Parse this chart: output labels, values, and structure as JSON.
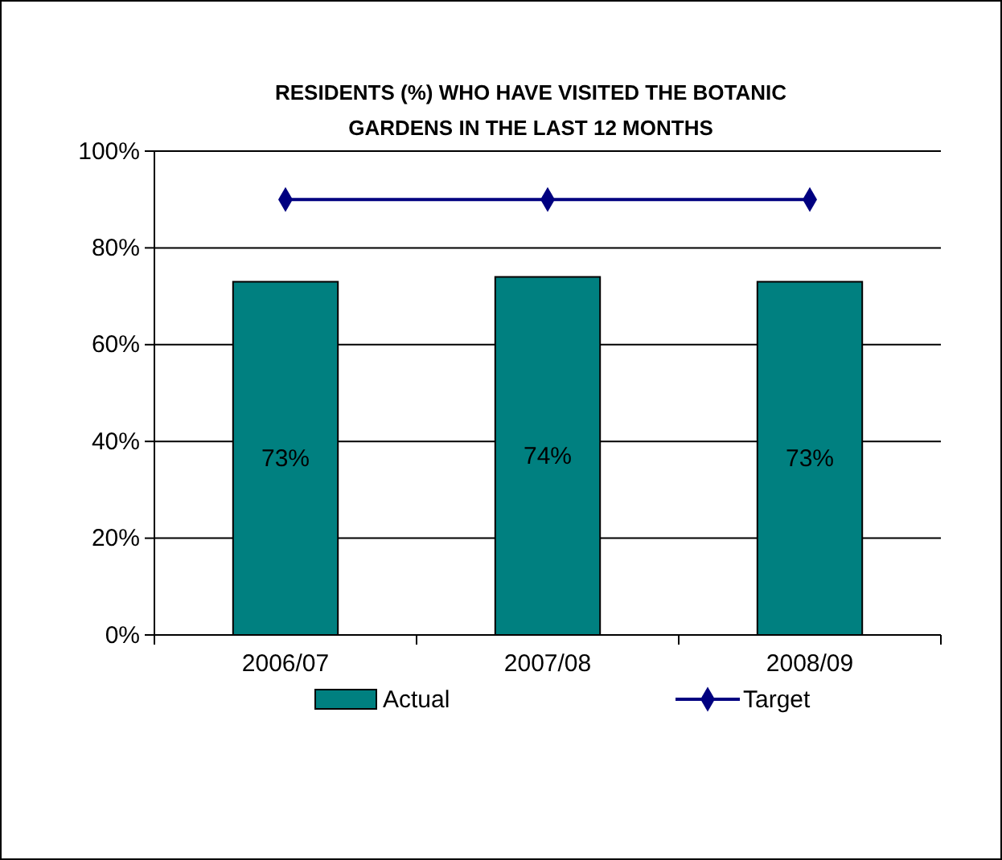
{
  "chart_data": {
    "type": "bar",
    "title": "RESIDENTS (%) WHO HAVE VISITED THE BOTANIC GARDENS IN THE LAST 12 MONTHS",
    "categories": [
      "2006/07",
      "2007/08",
      "2008/09"
    ],
    "series": [
      {
        "name": "Actual",
        "color": "#008080",
        "values": [
          73,
          74,
          73
        ],
        "value_labels": [
          "73%",
          "74%",
          "73%"
        ]
      },
      {
        "name": "Target",
        "type": "line",
        "color": "#000080",
        "values": [
          90,
          90,
          90
        ],
        "marker": "diamond"
      }
    ],
    "ylim": [
      0,
      100
    ],
    "yticks": [
      {
        "value": 0,
        "label": "0%"
      },
      {
        "value": 20,
        "label": "20%"
      },
      {
        "value": 40,
        "label": "40%"
      },
      {
        "value": 60,
        "label": "60%"
      },
      {
        "value": 80,
        "label": "80%"
      },
      {
        "value": 100,
        "label": "100%"
      }
    ],
    "grid": "y",
    "legend": "bottom"
  }
}
